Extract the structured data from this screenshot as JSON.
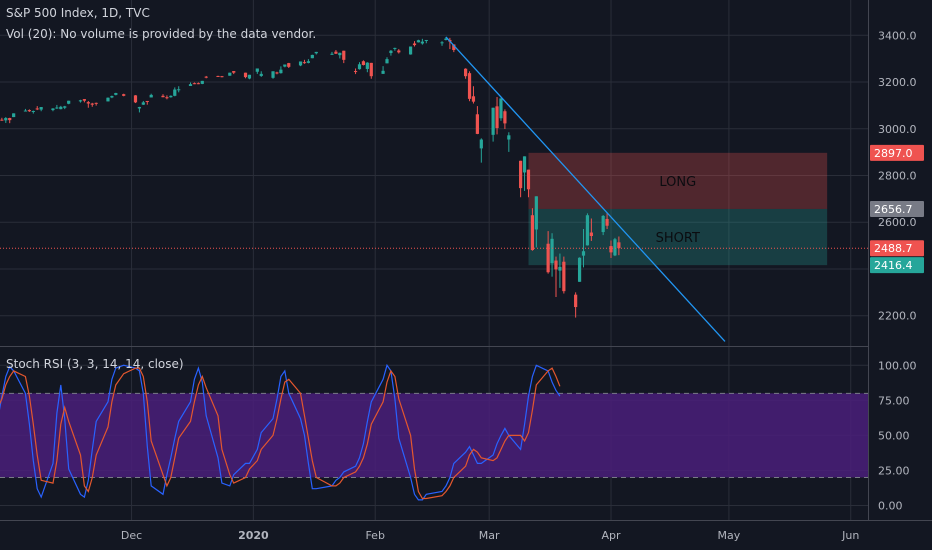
{
  "header": {
    "symbol_line": "S&P 500 Index, 1D, TVC",
    "volume_line": "Vol (20): No volume is provided by the data vendor."
  },
  "indicator": {
    "label": "Stoch RSI (3, 3, 14, 14, close)"
  },
  "colors": {
    "background": "#131722",
    "up": "#26a69a",
    "down": "#ef5350",
    "trendline": "#2196f3",
    "k_line": "#2962ff",
    "d_line": "#e4572e",
    "rsi_band": "#4a1f7a"
  },
  "chart_data": [
    {
      "type": "candlestick",
      "title": "S&P 500 Index, 1D, TVC",
      "x_ticks": [
        "Dec",
        "2020",
        "Feb",
        "Mar",
        "Apr",
        "May",
        "Jun"
      ],
      "y_ticks": [
        "2200.0",
        "2400.0",
        "2600.0",
        "2800.0",
        "3000.0",
        "3200.0",
        "3400.0"
      ],
      "ylim": [
        2080,
        3500
      ],
      "price_labels": [
        {
          "text": "2897.0",
          "value": 2897.0,
          "color": "#ef5350"
        },
        {
          "text": "2656.7",
          "value": 2656.7,
          "color": "#787b86"
        },
        {
          "text": "2488.7",
          "value": 2488.7,
          "color": "#ef5350"
        },
        {
          "text": "2416.4",
          "value": 2416.4,
          "color": "#26a69a"
        }
      ],
      "positions": [
        {
          "label": "LONG",
          "from": "2020-03-11",
          "to": "2020-05-26",
          "top": 2897.0,
          "bottom": 2656.7,
          "color": "#ef5350"
        },
        {
          "label": "SHORT",
          "from": "2020-03-11",
          "to": "2020-05-26",
          "top": 2656.7,
          "bottom": 2416.4,
          "color": "#26a69a"
        }
      ],
      "trendline": {
        "from": [
          "2020-02-19",
          3393
        ],
        "to": [
          "2020-04-30",
          2090
        ]
      },
      "current_price": 2488.7,
      "candles": [
        [
          "2019-10-28",
          3034,
          3040,
          3025,
          3039
        ],
        [
          "2019-10-29",
          3039,
          3047,
          3034,
          3036
        ],
        [
          "2019-10-30",
          3036,
          3050,
          3025,
          3046
        ],
        [
          "2019-10-31",
          3046,
          3047,
          3024,
          3037
        ],
        [
          "2019-11-01",
          3050,
          3066,
          3050,
          3066
        ],
        [
          "2019-11-04",
          3078,
          3085,
          3074,
          3078
        ],
        [
          "2019-11-05",
          3080,
          3083,
          3072,
          3075
        ],
        [
          "2019-11-06",
          3075,
          3078,
          3065,
          3076
        ],
        [
          "2019-11-07",
          3087,
          3097,
          3080,
          3085
        ],
        [
          "2019-11-08",
          3082,
          3093,
          3075,
          3093
        ],
        [
          "2019-11-11",
          3080,
          3088,
          3075,
          3087
        ],
        [
          "2019-11-12",
          3089,
          3102,
          3085,
          3091
        ],
        [
          "2019-11-13",
          3084,
          3098,
          3083,
          3094
        ],
        [
          "2019-11-14",
          3090,
          3098,
          3084,
          3096
        ],
        [
          "2019-11-15",
          3107,
          3120,
          3105,
          3120
        ],
        [
          "2019-11-18",
          3117,
          3124,
          3112,
          3122
        ],
        [
          "2019-11-19",
          3127,
          3127,
          3113,
          3120
        ],
        [
          "2019-11-20",
          3114,
          3119,
          3090,
          3108
        ],
        [
          "2019-11-21",
          3108,
          3111,
          3094,
          3103
        ],
        [
          "2019-11-22",
          3111,
          3112,
          3099,
          3110
        ],
        [
          "2019-11-25",
          3117,
          3134,
          3117,
          3133
        ],
        [
          "2019-11-26",
          3134,
          3142,
          3131,
          3140
        ],
        [
          "2019-11-27",
          3145,
          3154,
          3143,
          3153
        ],
        [
          "2019-11-29",
          3148,
          3150,
          3139,
          3141
        ],
        [
          "2019-12-02",
          3143,
          3144,
          3110,
          3113
        ],
        [
          "2019-12-03",
          3087,
          3094,
          3070,
          3093
        ],
        [
          "2019-12-04",
          3103,
          3119,
          3102,
          3113
        ],
        [
          "2019-12-05",
          3119,
          3119,
          3103,
          3117
        ],
        [
          "2019-12-06",
          3134,
          3150,
          3134,
          3145
        ],
        [
          "2019-12-09",
          3141,
          3148,
          3135,
          3135
        ],
        [
          "2019-12-10",
          3135,
          3143,
          3126,
          3132
        ],
        [
          "2019-12-11",
          3135,
          3143,
          3133,
          3141
        ],
        [
          "2019-12-12",
          3141,
          3177,
          3139,
          3168
        ],
        [
          "2019-12-13",
          3166,
          3182,
          3156,
          3169
        ],
        [
          "2019-12-16",
          3183,
          3198,
          3183,
          3191
        ],
        [
          "2019-12-17",
          3195,
          3198,
          3191,
          3192
        ],
        [
          "2019-12-18",
          3195,
          3198,
          3191,
          3191
        ],
        [
          "2019-12-19",
          3192,
          3205,
          3191,
          3205
        ],
        [
          "2019-12-20",
          3223,
          3226,
          3216,
          3221
        ],
        [
          "2019-12-23",
          3226,
          3227,
          3222,
          3224
        ],
        [
          "2019-12-24",
          3225,
          3226,
          3220,
          3223
        ],
        [
          "2019-12-26",
          3227,
          3240,
          3227,
          3240
        ],
        [
          "2019-12-27",
          3247,
          3247,
          3234,
          3240
        ],
        [
          "2019-12-30",
          3240,
          3240,
          3216,
          3221
        ],
        [
          "2019-12-31",
          3215,
          3231,
          3212,
          3231
        ],
        [
          "2020-01-02",
          3244,
          3258,
          3235,
          3258
        ],
        [
          "2020-01-03",
          3226,
          3246,
          3222,
          3235
        ],
        [
          "2020-01-06",
          3218,
          3246,
          3214,
          3246
        ],
        [
          "2020-01-07",
          3241,
          3244,
          3233,
          3237
        ],
        [
          "2020-01-08",
          3238,
          3267,
          3236,
          3253
        ],
        [
          "2020-01-09",
          3266,
          3275,
          3263,
          3275
        ],
        [
          "2020-01-10",
          3281,
          3282,
          3260,
          3265
        ],
        [
          "2020-01-13",
          3271,
          3288,
          3268,
          3288
        ],
        [
          "2020-01-14",
          3285,
          3295,
          3278,
          3283
        ],
        [
          "2020-01-15",
          3282,
          3298,
          3280,
          3289
        ],
        [
          "2020-01-16",
          3302,
          3317,
          3302,
          3316
        ],
        [
          "2020-01-17",
          3323,
          3329,
          3318,
          3329
        ],
        [
          "2020-01-21",
          3321,
          3329,
          3316,
          3321
        ],
        [
          "2020-01-22",
          3330,
          3337,
          3320,
          3321
        ],
        [
          "2020-01-23",
          3315,
          3326,
          3301,
          3325
        ],
        [
          "2020-01-24",
          3334,
          3334,
          3281,
          3295
        ],
        [
          "2020-01-27",
          3247,
          3258,
          3234,
          3244
        ],
        [
          "2020-01-28",
          3255,
          3285,
          3253,
          3276
        ],
        [
          "2020-01-29",
          3289,
          3293,
          3271,
          3273
        ],
        [
          "2020-01-30",
          3256,
          3285,
          3242,
          3283
        ],
        [
          "2020-01-31",
          3282,
          3282,
          3214,
          3225
        ],
        [
          "2020-02-03",
          3235,
          3268,
          3235,
          3248
        ],
        [
          "2020-02-04",
          3280,
          3306,
          3280,
          3298
        ],
        [
          "2020-02-05",
          3324,
          3337,
          3313,
          3334
        ],
        [
          "2020-02-06",
          3344,
          3347,
          3334,
          3346
        ],
        [
          "2020-02-07",
          3335,
          3341,
          3322,
          3327
        ],
        [
          "2020-02-10",
          3318,
          3352,
          3317,
          3352
        ],
        [
          "2020-02-11",
          3365,
          3375,
          3352,
          3358
        ],
        [
          "2020-02-12",
          3370,
          3381,
          3369,
          3379
        ],
        [
          "2020-02-13",
          3365,
          3385,
          3360,
          3373
        ],
        [
          "2020-02-14",
          3378,
          3380,
          3366,
          3380
        ],
        [
          "2020-02-18",
          3369,
          3375,
          3355,
          3370
        ],
        [
          "2020-02-19",
          3380,
          3393,
          3378,
          3386
        ],
        [
          "2020-02-20",
          3380,
          3389,
          3341,
          3373
        ],
        [
          "2020-02-21",
          3361,
          3361,
          3328,
          3337
        ],
        [
          "2020-02-24",
          3257,
          3259,
          3214,
          3225
        ],
        [
          "2020-02-25",
          3238,
          3246,
          3118,
          3128
        ],
        [
          "2020-02-26",
          3139,
          3182,
          3108,
          3116
        ],
        [
          "2020-02-27",
          3062,
          3097,
          2977,
          2978
        ],
        [
          "2020-02-28",
          2916,
          2959,
          2855,
          2954
        ],
        [
          "2020-03-02",
          2974,
          3090,
          2945,
          3090
        ],
        [
          "2020-03-03",
          3096,
          3136,
          2976,
          3003
        ],
        [
          "2020-03-04",
          3045,
          3130,
          3034,
          3130
        ],
        [
          "2020-03-05",
          3075,
          3083,
          2999,
          3023
        ],
        [
          "2020-03-06",
          2954,
          2985,
          2901,
          2972
        ],
        [
          "2020-03-09",
          2863,
          2863,
          2707,
          2746
        ],
        [
          "2020-03-10",
          2813,
          2882,
          2734,
          2882
        ],
        [
          "2020-03-11",
          2825,
          2825,
          2707,
          2741
        ],
        [
          "2020-03-12",
          2630,
          2660,
          2478,
          2481
        ],
        [
          "2020-03-13",
          2569,
          2711,
          2492,
          2711
        ],
        [
          "2020-03-16",
          2508,
          2562,
          2380,
          2386
        ],
        [
          "2020-03-17",
          2425,
          2553,
          2367,
          2529
        ],
        [
          "2020-03-18",
          2436,
          2453,
          2280,
          2398
        ],
        [
          "2020-03-19",
          2393,
          2466,
          2319,
          2409
        ],
        [
          "2020-03-20",
          2431,
          2453,
          2295,
          2305
        ],
        [
          "2020-03-23",
          2290,
          2300,
          2192,
          2237
        ],
        [
          "2020-03-24",
          2345,
          2450,
          2345,
          2448
        ],
        [
          "2020-03-25",
          2457,
          2571,
          2407,
          2476
        ],
        [
          "2020-03-26",
          2501,
          2638,
          2500,
          2630
        ],
        [
          "2020-03-27",
          2556,
          2616,
          2520,
          2541
        ],
        [
          "2020-03-30",
          2558,
          2631,
          2545,
          2627
        ],
        [
          "2020-03-31",
          2614,
          2641,
          2571,
          2585
        ],
        [
          "2020-04-01",
          2498,
          2522,
          2447,
          2471
        ],
        [
          "2020-04-02",
          2458,
          2533,
          2455,
          2527
        ],
        [
          "2020-04-03",
          2514,
          2539,
          2459,
          2489
        ]
      ]
    },
    {
      "type": "line",
      "title": "Stoch RSI (3, 3, 14, 14, close)",
      "y_ticks": [
        "0.00",
        "25.00",
        "50.00",
        "75.00",
        "100.00"
      ],
      "ylim": [
        -10,
        110
      ],
      "bands": [
        20,
        80
      ],
      "series": [
        {
          "values_k": [
            62,
            78,
            92,
            99,
            96,
            80,
            58,
            32,
            12,
            6,
            30,
            66,
            86,
            62,
            26,
            8,
            6,
            18,
            40,
            60,
            74,
            90,
            98,
            100,
            98,
            96,
            80,
            42,
            14,
            8,
            22,
            34,
            48,
            60,
            74,
            90,
            98,
            88,
            64,
            34,
            16,
            14,
            22,
            30,
            30,
            40,
            52,
            62,
            76,
            92,
            96,
            80,
            62,
            50,
            30,
            12,
            12,
            14,
            18,
            20,
            24,
            28,
            34,
            44,
            60,
            74,
            90,
            100,
            96,
            76,
            48,
            20,
            8,
            4,
            4,
            8,
            10,
            14,
            20,
            30,
            38,
            42,
            36,
            30,
            30,
            36,
            44,
            50,
            55,
            50,
            40,
            58,
            78,
            92,
            100,
            96,
            88,
            82,
            78
          ],
          "values_d": [
            70,
            76,
            86,
            92,
            96,
            92,
            78,
            58,
            36,
            18,
            16,
            32,
            58,
            70,
            60,
            36,
            14,
            10,
            20,
            36,
            56,
            74,
            86,
            94,
            98,
            98,
            92,
            74,
            46,
            22,
            14,
            20,
            34,
            48,
            60,
            74,
            86,
            92,
            84,
            64,
            40,
            22,
            16,
            20,
            26,
            32,
            40,
            50,
            62,
            76,
            88,
            90,
            80,
            64,
            48,
            32,
            20,
            14,
            14,
            16,
            20,
            24,
            28,
            34,
            44,
            58,
            74,
            88,
            96,
            92,
            76,
            50,
            26,
            10,
            5,
            5,
            7,
            10,
            14,
            20,
            28,
            36,
            40,
            38,
            34,
            32,
            34,
            40,
            46,
            50,
            50,
            46,
            52,
            68,
            86,
            96,
            98,
            92,
            85
          ]
        }
      ]
    }
  ]
}
